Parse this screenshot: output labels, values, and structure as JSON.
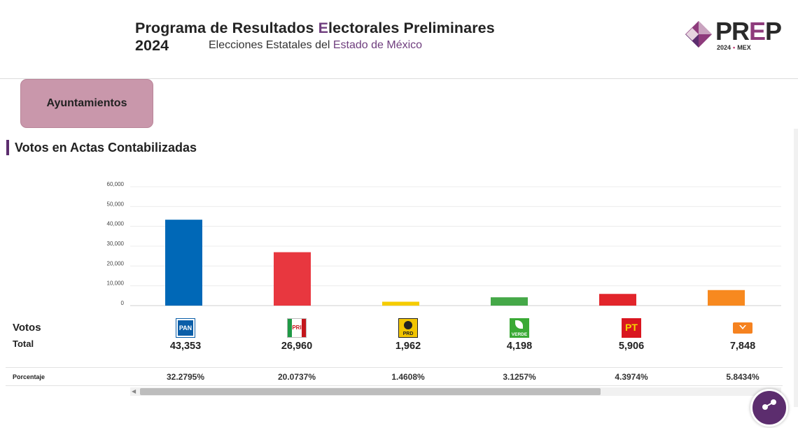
{
  "header": {
    "title_parts": [
      "Programa de Resultados ",
      "E",
      "lectorales Preliminares 2024"
    ],
    "subtitle_parts": [
      "Elecciones Estatales del ",
      "Estado de México"
    ],
    "logo_word_parts": [
      "PR",
      "E",
      "P"
    ],
    "logo_year": "2024",
    "logo_dot": "•",
    "logo_state": "MEX"
  },
  "tab": {
    "label": "Ayuntamientos"
  },
  "section": {
    "title": "Votos en Actas Contabilizadas"
  },
  "table": {
    "votos_label": "Votos",
    "total_label": "Total",
    "porcentaje_label": "Porcentaje"
  },
  "parties": [
    {
      "logo": "pan-logo",
      "logo_text": "PAN",
      "votes": "43,353",
      "percent": "32.2795%",
      "color": "#0068b7"
    },
    {
      "logo": "pri-logo",
      "logo_text": "PRI",
      "votes": "26,960",
      "percent": "20.0737%",
      "color": "#e8373f"
    },
    {
      "logo": "prd-logo",
      "logo_text": "PRD",
      "votes": "1,962",
      "percent": "1.4608%",
      "color": "#f5cc00"
    },
    {
      "logo": "pvem-logo",
      "logo_text": "VERDE",
      "votes": "4,198",
      "percent": "3.1257%",
      "color": "#45a848"
    },
    {
      "logo": "pt-logo",
      "logo_text": "PT",
      "votes": "5,906",
      "percent": "4.3974%",
      "color": "#e2252b"
    },
    {
      "logo": "mc-logo",
      "logo_text": "",
      "votes": "7,848",
      "percent": "5.8434%",
      "color": "#f7891f"
    }
  ],
  "chart_data": {
    "type": "bar",
    "title": "",
    "xlabel": "",
    "ylabel": "",
    "categories": [
      "PAN",
      "PRI",
      "PRD",
      "PVEM",
      "PT",
      "MC"
    ],
    "values": [
      43353,
      26960,
      1962,
      4198,
      5906,
      7848
    ],
    "ylim": [
      0,
      60000
    ],
    "yticks": [
      "0",
      "10,000",
      "20,000",
      "30,000",
      "40,000",
      "50,000",
      "60,000"
    ],
    "ytick_values": [
      0,
      10000,
      20000,
      30000,
      40000,
      50000,
      60000
    ],
    "grid": true,
    "legend": "none"
  },
  "scrollbar": {
    "arrow": "◀"
  },
  "share_button": {
    "icon": "share-icon"
  }
}
